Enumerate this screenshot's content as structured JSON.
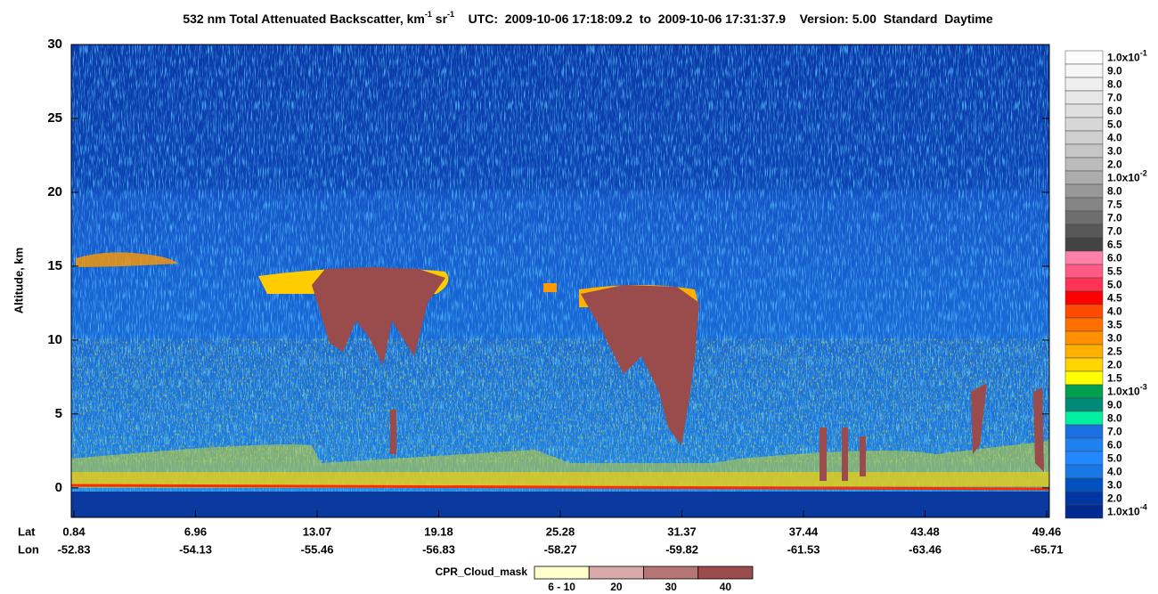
{
  "chart_data": {
    "type": "curtain",
    "title": [
      {
        "text": "532 nm Total Attenuated Backscatter, km"
      },
      {
        "sup": "-1"
      },
      {
        "text": " sr"
      },
      {
        "sup": "-1"
      },
      {
        "text": "    UTC:  2009-10-06 17:18:09.2  to  2009-10-06 17:31:37.9    Version: 5.00  Standard  Daytime"
      }
    ],
    "ylabel": "Altitude, km",
    "ylim": [
      -2,
      30
    ],
    "yticks": [
      0,
      5,
      10,
      15,
      20,
      25,
      30
    ],
    "row_labels": [
      "Lat",
      "Lon"
    ],
    "lat": [
      "0.84",
      "6.96",
      "13.07",
      "19.18",
      "25.28",
      "31.37",
      "37.44",
      "43.48",
      "49.46"
    ],
    "lon": [
      "-52.83",
      "-54.13",
      "-55.46",
      "-56.83",
      "-58.27",
      "-59.82",
      "-61.53",
      "-63.46",
      "-65.71"
    ],
    "colorbar": [
      {
        "label": "1.0x10",
        "sup": "-1",
        "color": "#ffffff"
      },
      {
        "label": "9.0",
        "color": "#f7f7f7"
      },
      {
        "label": "8.0",
        "color": "#efefef"
      },
      {
        "label": "7.0",
        "color": "#e7e7e7"
      },
      {
        "label": "6.0",
        "color": "#dfdfdf"
      },
      {
        "label": "5.0",
        "color": "#d7d7d7"
      },
      {
        "label": "4.0",
        "color": "#cfcfcf"
      },
      {
        "label": "3.0",
        "color": "#c6c6c6"
      },
      {
        "label": "2.0",
        "color": "#bcbcbc"
      },
      {
        "label": "1.0x10",
        "sup": "-2",
        "color": "#adadad"
      },
      {
        "label": "8.0",
        "color": "#989898"
      },
      {
        "label": "7.5",
        "color": "#858585"
      },
      {
        "label": "7.0",
        "color": "#6e6e6e"
      },
      {
        "label": "7.0",
        "color": "#585858"
      },
      {
        "label": "6.5",
        "color": "#434343"
      },
      {
        "label": "6.0",
        "color": "#ff80a8"
      },
      {
        "label": "5.5",
        "color": "#ff5a85"
      },
      {
        "label": "5.0",
        "color": "#ff3355"
      },
      {
        "label": "4.5",
        "color": "#ff0000"
      },
      {
        "label": "4.0",
        "color": "#ff4a00"
      },
      {
        "label": "3.5",
        "color": "#ff7000"
      },
      {
        "label": "3.0",
        "color": "#ff9000"
      },
      {
        "label": "2.5",
        "color": "#ffb000"
      },
      {
        "label": "2.0",
        "color": "#ffd400"
      },
      {
        "label": "1.5",
        "color": "#ffff00"
      },
      {
        "label": "1.0x10",
        "sup": "-3",
        "color": "#00a050"
      },
      {
        "label": "9.0",
        "color": "#008a78"
      },
      {
        "label": "8.0",
        "color": "#00f0a0"
      },
      {
        "label": "7.0",
        "color": "#1a70e0"
      },
      {
        "label": "6.0",
        "color": "#1f80f0"
      },
      {
        "label": "5.0",
        "color": "#2288ff"
      },
      {
        "label": "4.0",
        "color": "#1a78e6"
      },
      {
        "label": "3.0",
        "color": "#0050c0"
      },
      {
        "label": "2.0",
        "color": "#0036a2"
      },
      {
        "label": "1.0x10",
        "sup": "-4",
        "color": "#002a90"
      }
    ],
    "cloud_mask": {
      "title": "CPR_Cloud_mask",
      "classes": [
        {
          "label": "6 - 10",
          "color": "#ffffcc"
        },
        {
          "label": "20",
          "color": "#d9a9a9"
        },
        {
          "label": "30",
          "color": "#b77676"
        },
        {
          "label": "40",
          "color": "#9a4b4b"
        }
      ]
    }
  }
}
